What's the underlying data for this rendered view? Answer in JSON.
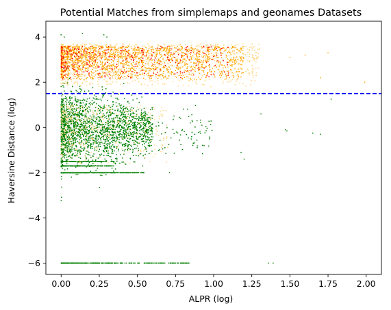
{
  "chart_data": {
    "type": "scatter",
    "title": "Potential Matches from simplemaps and geonames Datasets",
    "xlabel": "ALPR (log)",
    "ylabel": "Haversine Distance (log)",
    "xlim": [
      -0.1,
      2.1
    ],
    "ylim": [
      -6.5,
      4.7
    ],
    "x_ticks": [
      0.0,
      0.25,
      0.5,
      0.75,
      1.0,
      1.25,
      1.5,
      1.75,
      2.0
    ],
    "x_tick_labels": [
      "0.00",
      "0.25",
      "0.50",
      "0.75",
      "1.00",
      "1.25",
      "1.50",
      "1.75",
      "2.00"
    ],
    "y_ticks": [
      -6,
      -4,
      -2,
      0,
      2,
      4
    ],
    "y_tick_labels": [
      "−6",
      "−4",
      "−2",
      "0",
      "2",
      "4"
    ],
    "grid": false,
    "threshold_line": {
      "y": 1.5,
      "style": "dashed",
      "color": "#0000ff"
    },
    "colors": {
      "green": "#008000",
      "orange": "#ffa500",
      "gold": "#ffd580",
      "red": "#ff0000"
    },
    "series": [
      {
        "color_key": "green",
        "description_clusters": [
          {
            "x_range": [
              0.0,
              0.6
            ],
            "y_mean": -0.1,
            "y_spread": 0.9,
            "count": 1800
          },
          {
            "x_range": [
              0.0,
              1.0
            ],
            "y_mean": -0.3,
            "y_spread": 0.9,
            "count": 300
          },
          {
            "x_range": [
              0.0,
              0.55
            ],
            "y_line": -2.0,
            "count": 350
          },
          {
            "x_range": [
              0.0,
              0.35
            ],
            "y_line": -1.7,
            "count": 150
          },
          {
            "x_range": [
              0.0,
              0.35
            ],
            "y_line": -1.5,
            "count": 150
          },
          {
            "x_range": [
              0.0,
              0.85
            ],
            "y_line": -6.0,
            "count": 260
          }
        ],
        "points": [
          [
            0.0,
            4.1
          ],
          [
            0.02,
            4.0
          ],
          [
            0.14,
            4.15
          ],
          [
            0.28,
            4.1
          ],
          [
            0.3,
            4.0
          ],
          [
            1.18,
            -1.1
          ],
          [
            1.2,
            -1.4
          ],
          [
            1.31,
            0.6
          ],
          [
            1.47,
            -0.1
          ],
          [
            1.48,
            -0.15
          ],
          [
            1.65,
            -0.25
          ],
          [
            1.7,
            -0.3
          ],
          [
            1.77,
            1.25
          ],
          [
            1.36,
            -6.0
          ],
          [
            1.39,
            -6.0
          ],
          [
            0.71,
            -2.0
          ],
          [
            0.82,
            -6.0
          ],
          [
            0.8,
            -6.0
          ]
        ]
      },
      {
        "color_key": "orange",
        "description_clusters": [
          {
            "x_range": [
              0.0,
              1.2
            ],
            "y_range": [
              2.1,
              3.6
            ],
            "count": 1400
          }
        ],
        "points": [
          [
            1.5,
            3.1
          ],
          [
            1.6,
            3.2
          ],
          [
            1.7,
            2.2
          ],
          [
            1.75,
            3.3
          ],
          [
            1.99,
            2.0
          ]
        ]
      },
      {
        "color_key": "gold",
        "description_clusters": [
          {
            "x_range": [
              0.0,
              1.3
            ],
            "y_range": [
              1.8,
              3.7
            ],
            "count": 1200
          },
          {
            "x_range": [
              0.0,
              0.7
            ],
            "y_range": [
              -1.6,
              1.0
            ],
            "count": 400
          }
        ],
        "points": []
      },
      {
        "color_key": "red",
        "description_clusters": [
          {
            "x_range": [
              0.0,
              1.1
            ],
            "y_range": [
              2.1,
              3.6
            ],
            "count": 300
          }
        ],
        "points": []
      }
    ]
  }
}
